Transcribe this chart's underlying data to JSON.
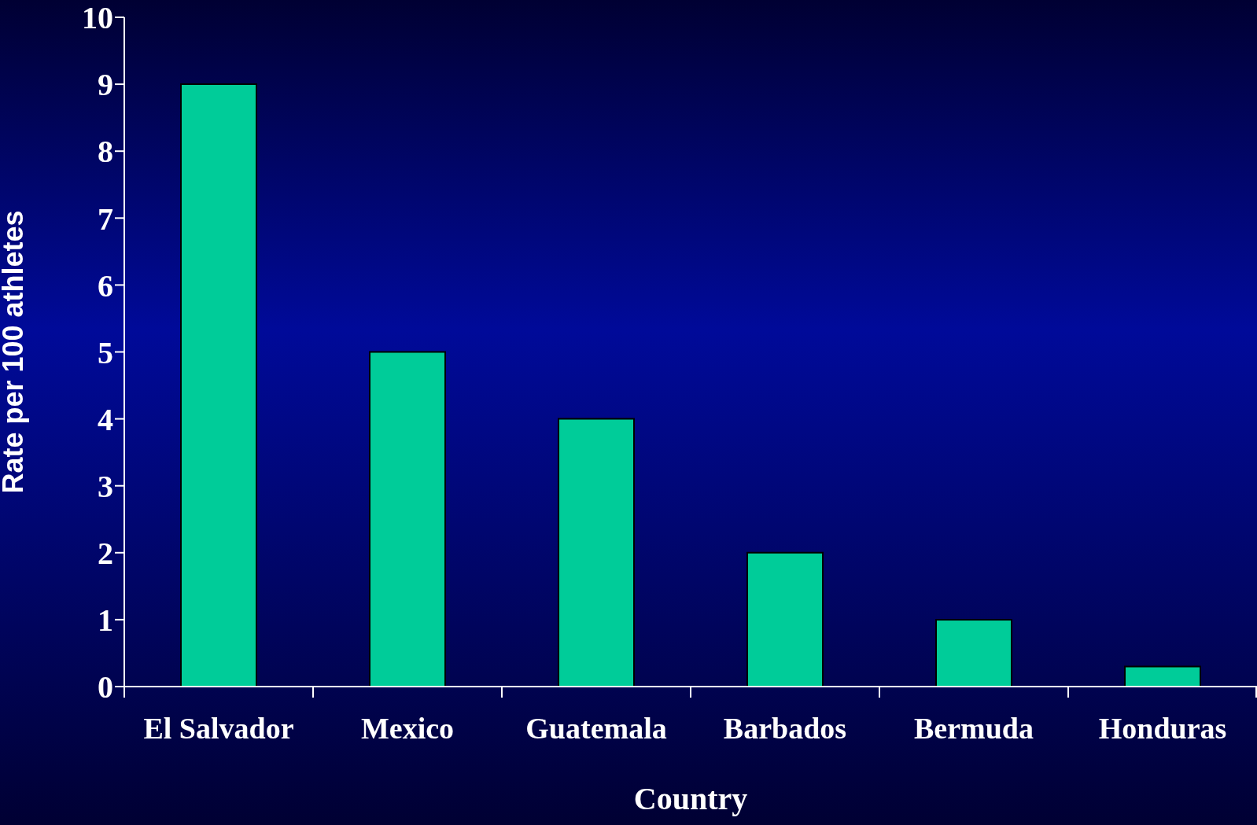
{
  "chart_data": {
    "type": "bar",
    "xlabel": "Country",
    "ylabel": "Rate per 100 athletes",
    "categories": [
      "El Salvador",
      "Mexico",
      "Guatemala",
      "Barbados",
      "Bermuda",
      "Honduras"
    ],
    "values": [
      9,
      5,
      4,
      2,
      1,
      0.3
    ],
    "color": "#00cc99",
    "ylim": [
      0,
      10
    ],
    "yticks": [
      0,
      1,
      2,
      3,
      4,
      5,
      6,
      7,
      8,
      9,
      10
    ]
  }
}
